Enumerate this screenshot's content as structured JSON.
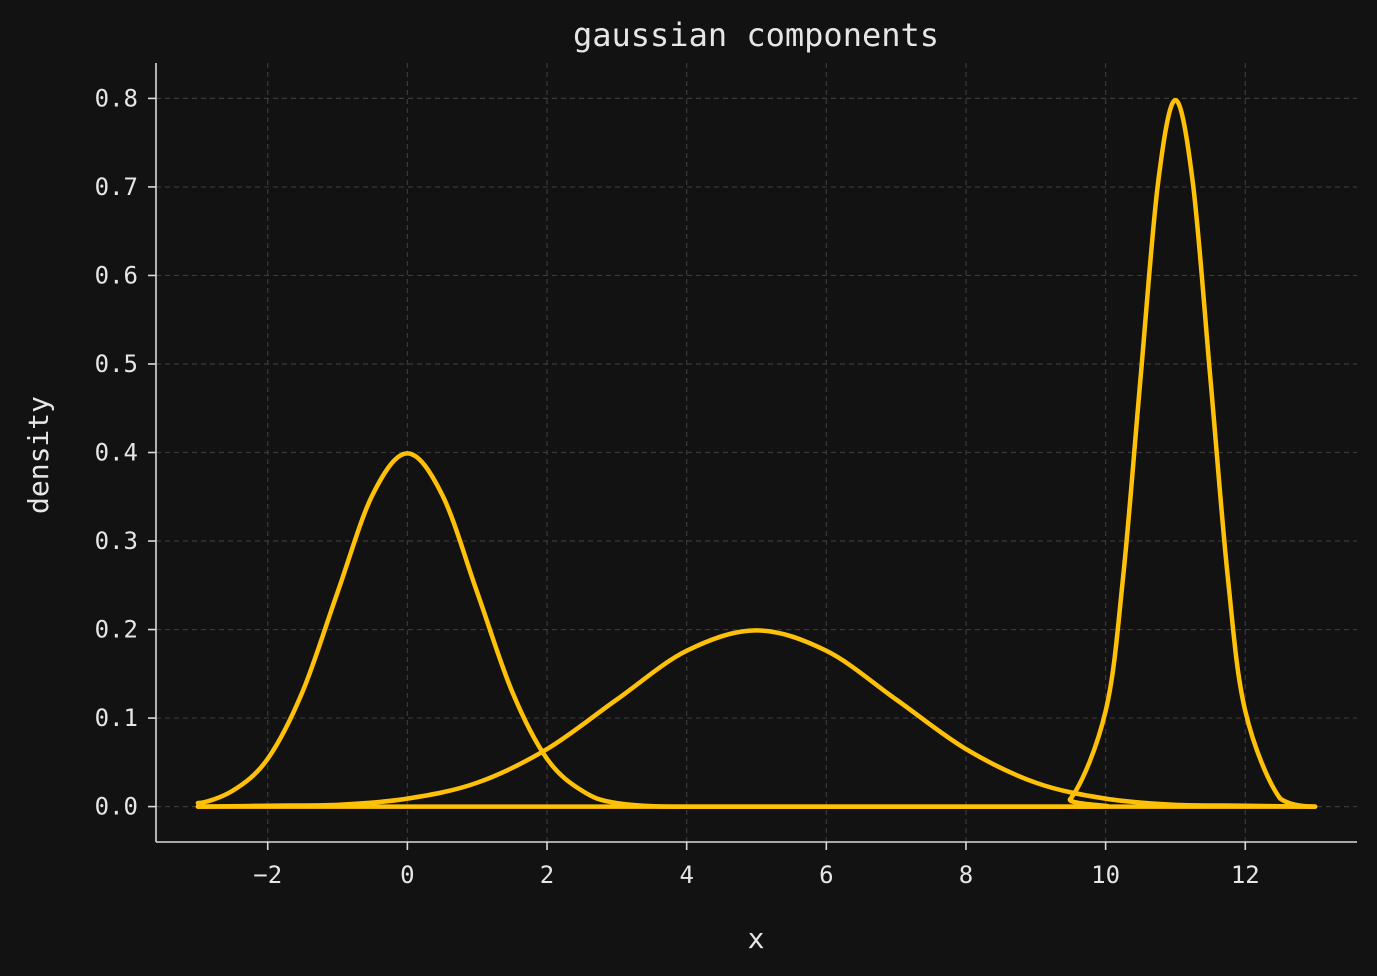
{
  "chart_data": {
    "type": "line",
    "title": "gaussian components",
    "xlabel": "x",
    "ylabel": "density",
    "xlim": [
      -3.6,
      13.6
    ],
    "ylim": [
      -0.04,
      0.84
    ],
    "xticks": [
      -2,
      0,
      2,
      4,
      6,
      8,
      10,
      12
    ],
    "xtick_labels": [
      "−2",
      "0",
      "2",
      "4",
      "6",
      "8",
      "10",
      "12"
    ],
    "yticks": [
      0.0,
      0.1,
      0.2,
      0.3,
      0.4,
      0.5,
      0.6,
      0.7,
      0.8
    ],
    "ytick_labels": [
      "0.0",
      "0.1",
      "0.2",
      "0.3",
      "0.4",
      "0.5",
      "0.6",
      "0.7",
      "0.8"
    ],
    "grid": true,
    "line_color": "#ffc107",
    "series": [
      {
        "x": [
          -3,
          -2.5,
          -2,
          -1.5,
          -1,
          -0.5,
          0,
          0.5,
          1,
          1.5,
          2,
          2.5,
          3,
          4,
          6,
          8,
          10,
          12,
          13
        ],
        "values": [
          0.004,
          0.018,
          0.054,
          0.13,
          0.242,
          0.352,
          0.399,
          0.352,
          0.242,
          0.13,
          0.054,
          0.018,
          0.004,
          0.0,
          0.0,
          0.0,
          0.0,
          0.0,
          0.0
        ]
      },
      {
        "x": [
          -3,
          -2,
          -1,
          0,
          1,
          2,
          3,
          4,
          5,
          6,
          7,
          8,
          9,
          10,
          11,
          12,
          13
        ],
        "values": [
          0.0,
          0.001,
          0.002,
          0.009,
          0.027,
          0.065,
          0.121,
          0.176,
          0.199,
          0.176,
          0.121,
          0.065,
          0.027,
          0.009,
          0.002,
          0.001,
          0.0
        ]
      },
      {
        "x": [
          -3,
          9,
          9.5,
          10,
          10.25,
          10.5,
          10.75,
          11,
          11.25,
          11.5,
          11.75,
          12,
          12.5,
          13
        ],
        "values": [
          0.0,
          0.0,
          0.009,
          0.108,
          0.259,
          0.484,
          0.704,
          0.798,
          0.704,
          0.484,
          0.259,
          0.108,
          0.009,
          0.0
        ]
      }
    ]
  }
}
